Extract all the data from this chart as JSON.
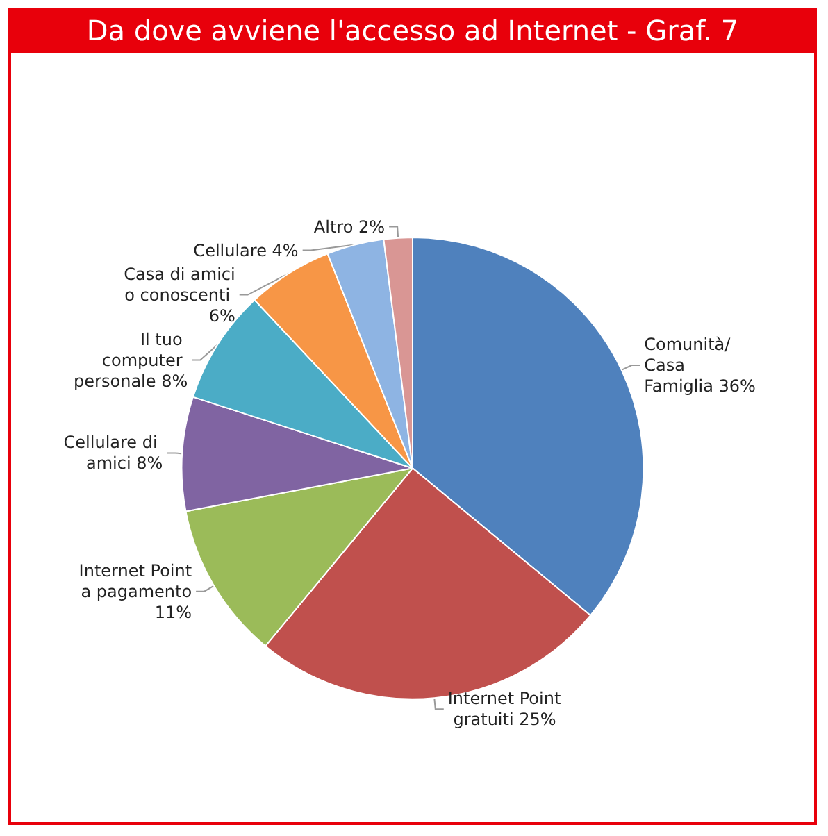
{
  "chart_data": {
    "type": "pie",
    "title": "Da dove avviene l'accesso ad Internet - Graf. 7",
    "categories": [
      "Comunità/Casa Famiglia",
      "Internet Point gratuiti",
      "Internet Point a pagamento",
      "Cellulare di amici",
      "Il tuo computer personale",
      "Casa di amici o conoscenti",
      "Cellulare",
      "Altro"
    ],
    "values": [
      36,
      25,
      11,
      8,
      8,
      6,
      4,
      2
    ],
    "value_labels": [
      "36%",
      "25%",
      "11%",
      "8%",
      "8%",
      "6%",
      "4%",
      "2%"
    ],
    "colors": [
      "#4f81bd",
      "#c0504d",
      "#9bbb59",
      "#8064a2",
      "#4bacc6",
      "#f79646",
      "#8eb4e3",
      "#d99694"
    ],
    "legend": false
  }
}
